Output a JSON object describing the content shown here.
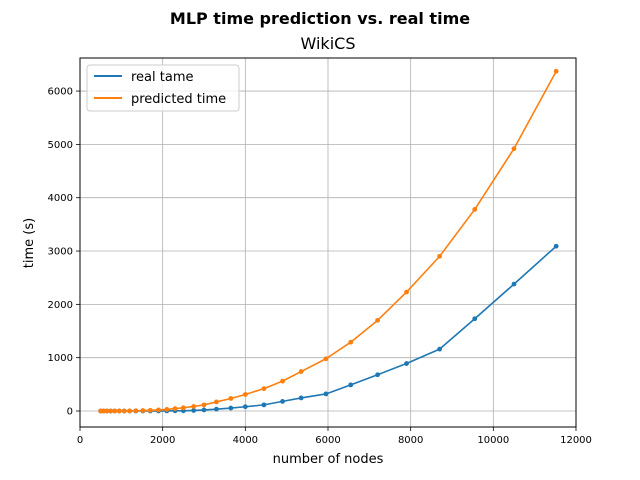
{
  "chart_data": {
    "type": "line",
    "suptitle": "MLP time prediction vs. real time",
    "title": "WikiCS",
    "xlabel": "number of nodes",
    "ylabel": "time (s)",
    "xlim": [
      0,
      12000
    ],
    "ylim": [
      -300,
      6620
    ],
    "xticks": [
      0,
      2000,
      4000,
      6000,
      8000,
      10000,
      12000
    ],
    "yticks": [
      0,
      1000,
      2000,
      3000,
      4000,
      5000,
      6000
    ],
    "grid": true,
    "legend_position": "top-left",
    "series": [
      {
        "name": "real tame",
        "color": "#1f77b4",
        "x": [
          500,
          570,
          650,
          740,
          840,
          950,
          1070,
          1200,
          1350,
          1520,
          1700,
          1900,
          2100,
          2300,
          2500,
          2750,
          3000,
          3300,
          3650,
          4000,
          4450,
          4900,
          5350,
          5950,
          6550,
          7200,
          7900,
          8700,
          9550,
          10500,
          11520
        ],
        "y": [
          0,
          0,
          0,
          0,
          0,
          0,
          0,
          0,
          0,
          0,
          0,
          1,
          2,
          3,
          4,
          10,
          20,
          35,
          55,
          80,
          115,
          180,
          245,
          320,
          490,
          680,
          890,
          1160,
          1730,
          2380,
          3090
        ]
      },
      {
        "name": "predicted time",
        "color": "#ff7f0e",
        "x": [
          500,
          570,
          650,
          740,
          840,
          950,
          1070,
          1200,
          1350,
          1520,
          1700,
          1900,
          2100,
          2300,
          2500,
          2750,
          3000,
          3300,
          3650,
          4000,
          4450,
          4900,
          5350,
          5950,
          6550,
          7200,
          7900,
          8700,
          9550,
          10500,
          11520
        ],
        "y": [
          0,
          0,
          0,
          0,
          0,
          0,
          0,
          2,
          5,
          8,
          12,
          20,
          30,
          45,
          60,
          85,
          115,
          170,
          235,
          310,
          420,
          560,
          740,
          980,
          1290,
          1700,
          2230,
          2900,
          3780,
          4920,
          6370
        ]
      }
    ]
  }
}
